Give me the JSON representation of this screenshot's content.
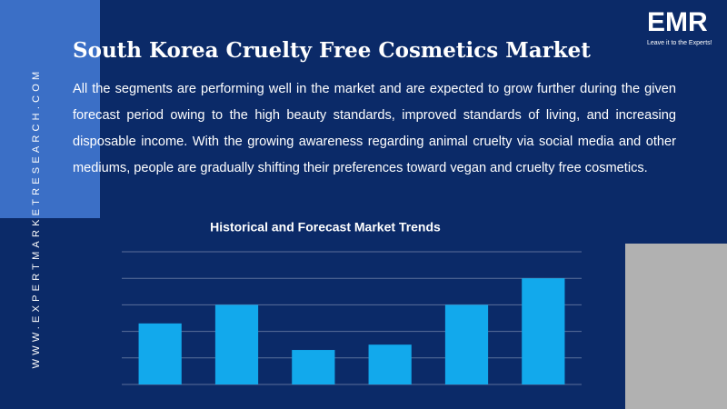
{
  "brand": {
    "logo": "EMR",
    "tagline": "Leave it to the Experts!",
    "website": "WWW.EXPERTMARKETRESEARCH.COM"
  },
  "header": {
    "title": "South Korea Cruelty Free Cosmetics Market",
    "description": "All the segments are performing well in the market and are expected to grow further during the given forecast period owing to the high beauty standards, improved standards of living, and increasing disposable income. With the growing awareness regarding animal cruelty via social media and other mediums, people are gradually shifting their preferences toward vegan and cruelty free cosmetics."
  },
  "chart_data": {
    "type": "bar",
    "title": "Historical and Forecast Market Trends",
    "categories": [
      null,
      null,
      null,
      null,
      null,
      null
    ],
    "values": [
      2.3,
      3.0,
      1.3,
      1.5,
      3.0,
      4.0
    ],
    "color": "#12a9ec",
    "ylim": [
      0,
      5
    ],
    "yticks": [
      0,
      1,
      2,
      3,
      4,
      5
    ],
    "grid": true
  }
}
